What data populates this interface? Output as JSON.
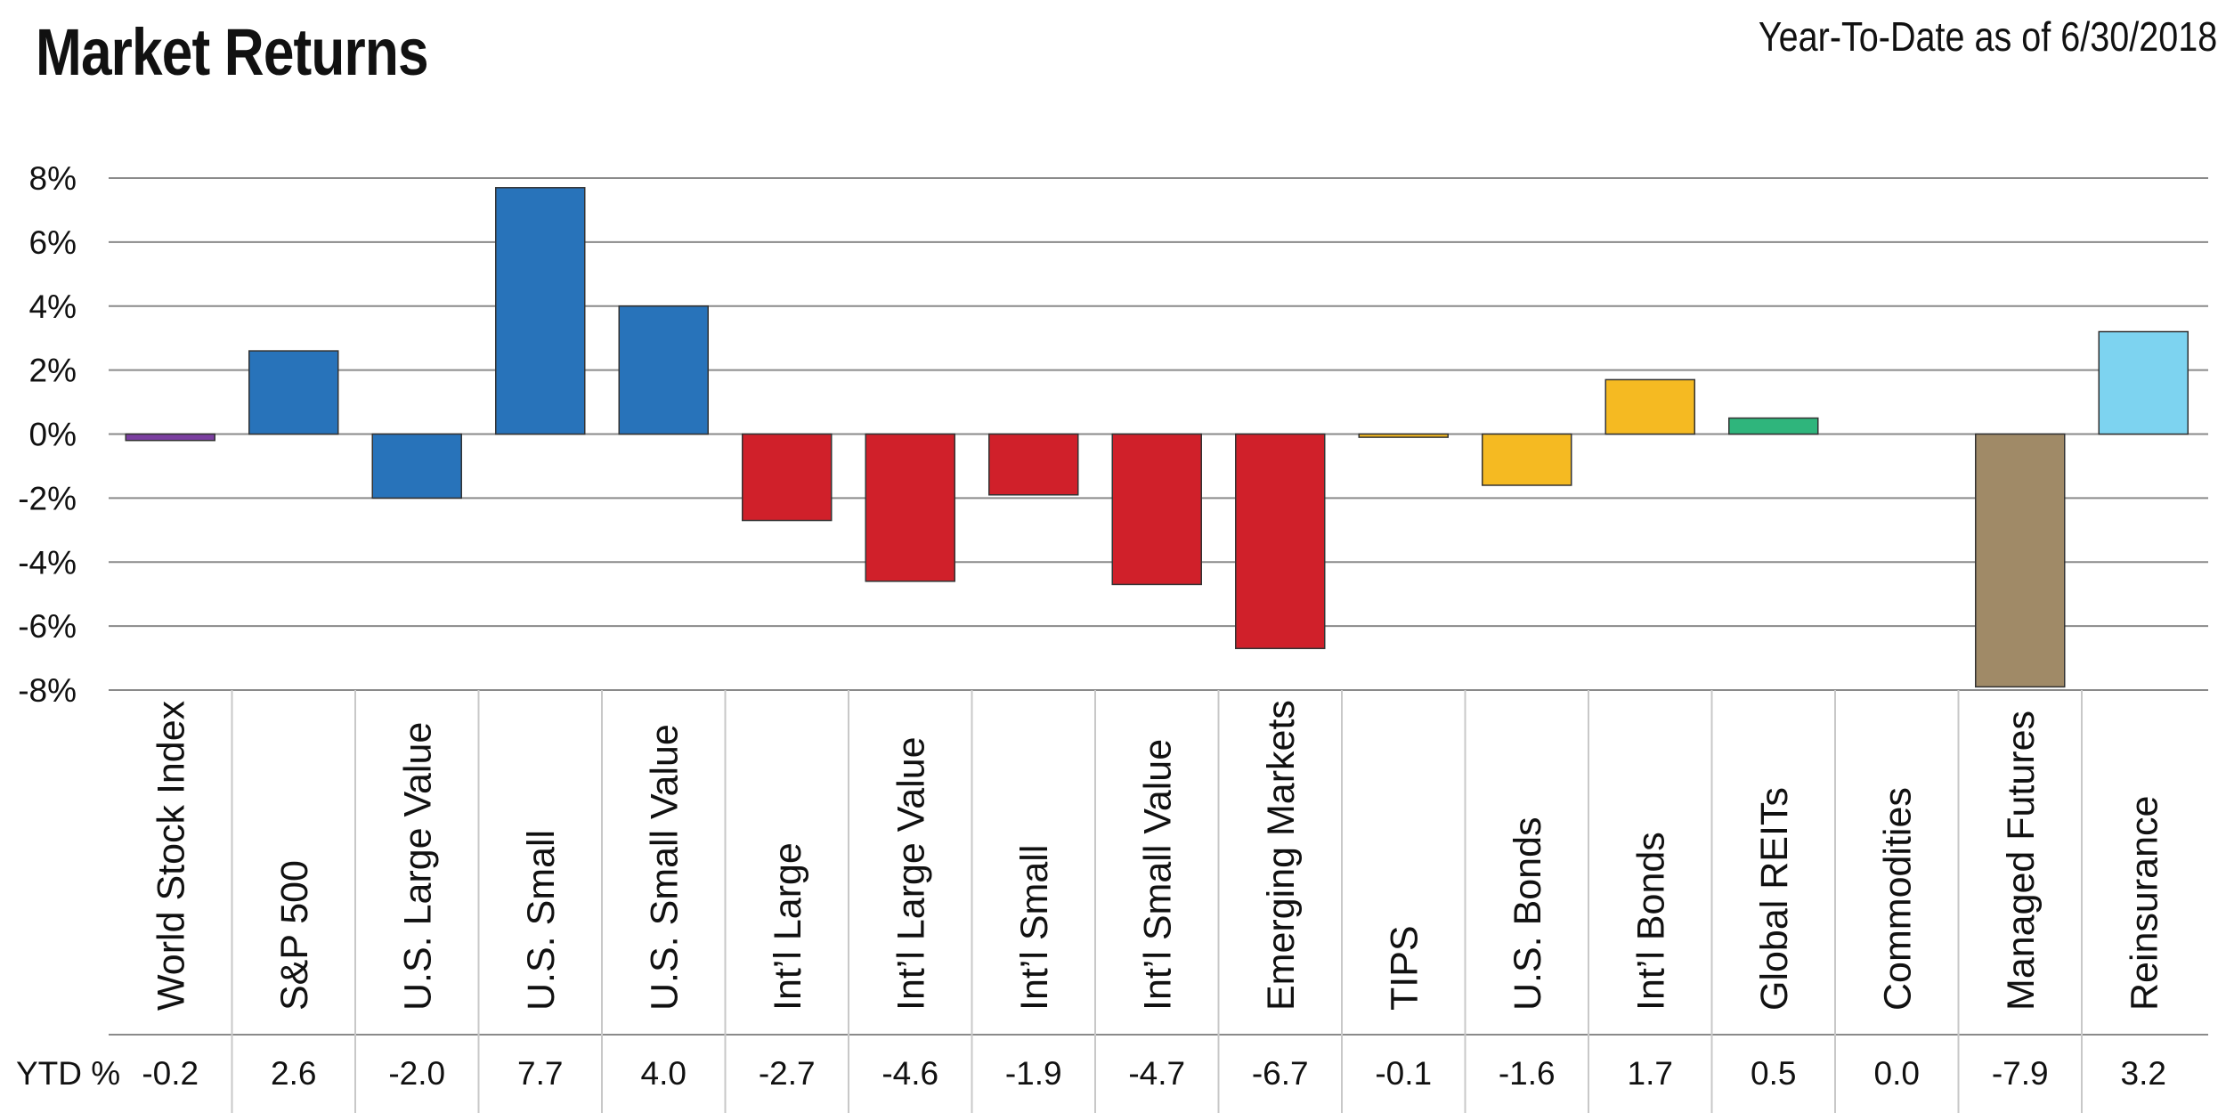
{
  "chart_data": {
    "type": "bar",
    "title": "Market Returns",
    "subtitle": "Year-To-Date as of 6/30/2018",
    "row_label": "YTD %",
    "ylim": [
      -8,
      8
    ],
    "yticks": [
      "8%",
      "6%",
      "4%",
      "2%",
      "0%",
      "-2%",
      "-4%",
      "-6%",
      "-8%"
    ],
    "ytick_values": [
      8,
      6,
      4,
      2,
      0,
      -2,
      -4,
      -6,
      -8
    ],
    "grid": true,
    "categories": [
      "World Stock Index",
      "S&P 500",
      "U.S. Large Value",
      "U.S. Small",
      "U.S. Small Value",
      "Int’l Large",
      "Int’l Large Value",
      "Int’l Small",
      "Int’l Small Value",
      "Emerging Markets",
      "TIPS",
      "U.S. Bonds",
      "Int’l Bonds",
      "Global REITs",
      "Commodities",
      "Managed Futures",
      "Reinsurance"
    ],
    "values": [
      -0.2,
      2.6,
      -2.0,
      7.7,
      4.0,
      -2.7,
      -4.6,
      -1.9,
      -4.7,
      -6.7,
      -0.1,
      -1.6,
      1.7,
      0.5,
      0.0,
      -7.9,
      3.2
    ],
    "value_labels": [
      "-0.2",
      "2.6",
      "-2.0",
      "7.7",
      "4.0",
      "-2.7",
      "-4.6",
      "-1.9",
      "-4.7",
      "-6.7",
      "-0.1",
      "-1.6",
      "1.7",
      "0.5",
      "0.0",
      "-7.9",
      "3.2"
    ],
    "colors": [
      "#7b3fa0",
      "#2873ba",
      "#2873ba",
      "#2873ba",
      "#2873ba",
      "#d0202a",
      "#d0202a",
      "#d0202a",
      "#d0202a",
      "#d0202a",
      "#f5ba22",
      "#f5ba22",
      "#f5ba22",
      "#2fb57c",
      "#2fb57c",
      "#a08a67",
      "#7dd3f0"
    ],
    "grid_color": "#8a8a8a",
    "separator_color": "#c8c8c8"
  }
}
